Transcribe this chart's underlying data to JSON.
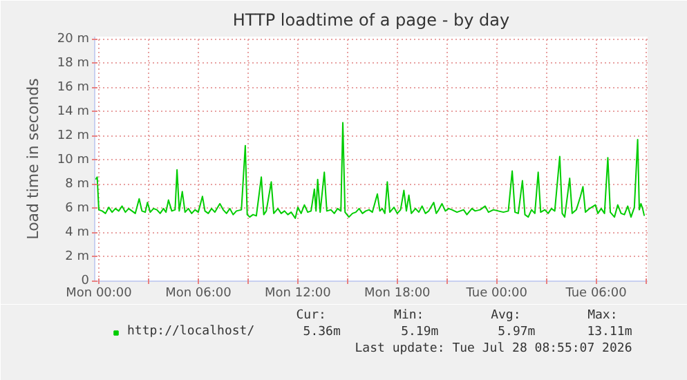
{
  "chart_data": {
    "type": "line",
    "title": "HTTP loadtime of a page - by day",
    "ylabel": "Load time in seconds",
    "xlim": [
      "2026-07-26T23:45",
      "2026-07-28T09:06"
    ],
    "ylim": [
      0,
      20.2
    ],
    "xticks": [
      {
        "value": "2026-07-27T00:00",
        "label": "Mon 00:00"
      },
      {
        "value": "2026-07-27T03:00",
        "label": null
      },
      {
        "value": "2026-07-27T06:00",
        "label": "Mon 06:00"
      },
      {
        "value": "2026-07-27T09:00",
        "label": null
      },
      {
        "value": "2026-07-27T12:00",
        "label": "Mon 12:00"
      },
      {
        "value": "2026-07-27T15:00",
        "label": null
      },
      {
        "value": "2026-07-27T18:00",
        "label": "Mon 18:00"
      },
      {
        "value": "2026-07-27T21:00",
        "label": null
      },
      {
        "value": "2026-07-28T00:00",
        "label": "Tue 00:00"
      },
      {
        "value": "2026-07-28T03:00",
        "label": null
      },
      {
        "value": "2026-07-28T06:00",
        "label": "Tue 06:00"
      },
      {
        "value": "2026-07-28T09:00",
        "label": null
      }
    ],
    "yticks": [
      0,
      {
        "value": 2,
        "label": "2 m"
      },
      {
        "value": 4,
        "label": "4 m"
      },
      {
        "value": 6,
        "label": "6 m"
      },
      {
        "value": 8,
        "label": "8 m"
      },
      {
        "value": 10,
        "label": "10 m"
      },
      {
        "value": 12,
        "label": "12 m"
      },
      {
        "value": 14,
        "label": "14 m"
      },
      {
        "value": 16,
        "label": "16 m"
      },
      {
        "value": 18,
        "label": "18 m"
      },
      {
        "value": 20,
        "label": "20 m"
      }
    ],
    "grid": true,
    "legend": "bottom left",
    "marker": "none",
    "line_style": "solid",
    "series": [
      {
        "name": "http://localhost/",
        "color": "#00cc00",
        "x": [
          "2026-07-26T23:48",
          "2026-07-26T23:54",
          "2026-07-27T00:00",
          "2026-07-27T00:12",
          "2026-07-27T00:24",
          "2026-07-27T00:36",
          "2026-07-27T00:48",
          "2026-07-27T01:00",
          "2026-07-27T01:12",
          "2026-07-27T01:24",
          "2026-07-27T01:36",
          "2026-07-27T01:48",
          "2026-07-27T02:00",
          "2026-07-27T02:12",
          "2026-07-27T02:26",
          "2026-07-27T02:36",
          "2026-07-27T02:48",
          "2026-07-27T02:56",
          "2026-07-27T03:06",
          "2026-07-27T03:18",
          "2026-07-27T03:30",
          "2026-07-27T03:42",
          "2026-07-27T03:54",
          "2026-07-27T04:03",
          "2026-07-27T04:12",
          "2026-07-27T04:24",
          "2026-07-27T04:36",
          "2026-07-27T04:43",
          "2026-07-27T04:51",
          "2026-07-27T05:02",
          "2026-07-27T05:12",
          "2026-07-27T05:24",
          "2026-07-27T05:36",
          "2026-07-27T05:48",
          "2026-07-27T06:00",
          "2026-07-27T06:15",
          "2026-07-27T06:24",
          "2026-07-27T06:36",
          "2026-07-27T06:48",
          "2026-07-27T07:00",
          "2026-07-27T07:18",
          "2026-07-27T07:30",
          "2026-07-27T07:42",
          "2026-07-27T07:54",
          "2026-07-27T08:06",
          "2026-07-27T08:18",
          "2026-07-27T08:36",
          "2026-07-27T08:50",
          "2026-07-27T08:57",
          "2026-07-27T09:06",
          "2026-07-27T09:18",
          "2026-07-27T09:30",
          "2026-07-27T09:48",
          "2026-07-27T09:57",
          "2026-07-27T10:06",
          "2026-07-27T10:24",
          "2026-07-27T10:33",
          "2026-07-27T10:48",
          "2026-07-27T11:00",
          "2026-07-27T11:12",
          "2026-07-27T11:24",
          "2026-07-27T11:36",
          "2026-07-27T11:51",
          "2026-07-27T12:00",
          "2026-07-27T12:12",
          "2026-07-27T12:24",
          "2026-07-27T12:36",
          "2026-07-27T12:48",
          "2026-07-27T13:00",
          "2026-07-27T13:06",
          "2026-07-27T13:12",
          "2026-07-27T13:21",
          "2026-07-27T13:36",
          "2026-07-27T13:45",
          "2026-07-27T14:00",
          "2026-07-27T14:12",
          "2026-07-27T14:24",
          "2026-07-27T14:36",
          "2026-07-27T14:43",
          "2026-07-27T14:51",
          "2026-07-27T15:05",
          "2026-07-27T15:18",
          "2026-07-27T15:30",
          "2026-07-27T15:42",
          "2026-07-27T15:54",
          "2026-07-27T16:06",
          "2026-07-27T16:18",
          "2026-07-27T16:30",
          "2026-07-27T16:48",
          "2026-07-27T16:57",
          "2026-07-27T17:06",
          "2026-07-27T17:15",
          "2026-07-27T17:24",
          "2026-07-27T17:33",
          "2026-07-27T17:48",
          "2026-07-27T18:00",
          "2026-07-27T18:12",
          "2026-07-27T18:24",
          "2026-07-27T18:33",
          "2026-07-27T18:42",
          "2026-07-27T18:51",
          "2026-07-27T19:06",
          "2026-07-27T19:18",
          "2026-07-27T19:30",
          "2026-07-27T19:42",
          "2026-07-27T19:54",
          "2026-07-27T20:12",
          "2026-07-27T20:21",
          "2026-07-27T20:30",
          "2026-07-27T20:42",
          "2026-07-27T20:54",
          "2026-07-27T21:06",
          "2026-07-27T21:18",
          "2026-07-27T21:36",
          "2026-07-27T22:00",
          "2026-07-27T22:12",
          "2026-07-27T22:30",
          "2026-07-27T22:42",
          "2026-07-27T23:00",
          "2026-07-27T23:18",
          "2026-07-27T23:30",
          "2026-07-27T23:48",
          "2026-07-28T00:06",
          "2026-07-28T00:24",
          "2026-07-28T00:42",
          "2026-07-28T00:56",
          "2026-07-28T01:06",
          "2026-07-28T01:18",
          "2026-07-28T01:33",
          "2026-07-28T01:42",
          "2026-07-28T01:54",
          "2026-07-28T02:06",
          "2026-07-28T02:18",
          "2026-07-28T02:30",
          "2026-07-28T02:39",
          "2026-07-28T02:54",
          "2026-07-28T03:06",
          "2026-07-28T03:18",
          "2026-07-28T03:30",
          "2026-07-28T03:48",
          "2026-07-28T03:57",
          "2026-07-28T04:06",
          "2026-07-28T04:24",
          "2026-07-28T04:33",
          "2026-07-28T04:48",
          "2026-07-28T05:03",
          "2026-07-28T05:12",
          "2026-07-28T05:21",
          "2026-07-28T05:36",
          "2026-07-28T05:57",
          "2026-07-28T06:06",
          "2026-07-28T06:18",
          "2026-07-28T06:30",
          "2026-07-28T06:42",
          "2026-07-28T06:51",
          "2026-07-28T07:06",
          "2026-07-28T07:18",
          "2026-07-28T07:30",
          "2026-07-28T07:42",
          "2026-07-28T07:54",
          "2026-07-28T08:06",
          "2026-07-28T08:18",
          "2026-07-28T08:30",
          "2026-07-28T08:36",
          "2026-07-28T08:42",
          "2026-07-28T08:48",
          "2026-07-28T08:54"
        ],
        "values": [
          8.4,
          8.6,
          5.9,
          5.8,
          5.6,
          6.1,
          5.7,
          6.0,
          5.8,
          6.2,
          5.7,
          6.0,
          5.8,
          5.6,
          6.8,
          5.8,
          5.7,
          6.5,
          5.7,
          6.0,
          5.9,
          5.6,
          6.0,
          5.7,
          6.7,
          5.8,
          5.9,
          9.2,
          5.8,
          7.4,
          5.7,
          6.0,
          5.6,
          5.9,
          5.7,
          7.0,
          5.8,
          5.6,
          6.0,
          5.7,
          6.4,
          5.9,
          5.6,
          6.0,
          5.5,
          5.8,
          5.9,
          11.2,
          5.5,
          5.3,
          5.5,
          5.4,
          8.6,
          5.5,
          5.8,
          8.2,
          5.6,
          6.0,
          5.6,
          5.8,
          5.5,
          5.7,
          5.2,
          6.1,
          5.6,
          6.3,
          5.7,
          5.8,
          7.6,
          5.8,
          8.4,
          5.7,
          9.0,
          5.8,
          5.9,
          5.6,
          6.0,
          5.8,
          13.1,
          5.7,
          5.3,
          5.6,
          5.7,
          6.0,
          5.6,
          5.8,
          5.9,
          5.7,
          7.2,
          5.8,
          6.0,
          5.6,
          8.2,
          5.7,
          6.1,
          5.6,
          5.9,
          7.5,
          5.8,
          7.1,
          5.6,
          6.0,
          5.7,
          6.2,
          5.6,
          5.8,
          6.5,
          5.6,
          5.9,
          6.4,
          5.8,
          6.0,
          5.9,
          5.7,
          5.9,
          5.5,
          6.0,
          5.8,
          5.9,
          6.2,
          5.7,
          5.9,
          5.8,
          5.7,
          5.8,
          9.1,
          5.7,
          5.6,
          8.3,
          5.5,
          5.3,
          5.9,
          5.6,
          9.0,
          5.7,
          5.9,
          5.6,
          6.0,
          5.8,
          10.3,
          5.6,
          5.3,
          8.5,
          5.6,
          5.9,
          7.0,
          7.8,
          5.7,
          6.0,
          6.3,
          5.6,
          6.0,
          5.6,
          10.2,
          5.7,
          5.3,
          6.3,
          5.6,
          5.5,
          6.2,
          5.3,
          6.1,
          11.7,
          5.9,
          6.4,
          6.0,
          5.4
        ]
      }
    ],
    "annotations": [
      "Cur:",
      "5.36m",
      "Min:",
      "5.19m",
      "Avg:",
      "5.97m",
      "Max:",
      "13.11m",
      "Last update: Tue Jul 28 08:55:07 2026"
    ]
  }
}
